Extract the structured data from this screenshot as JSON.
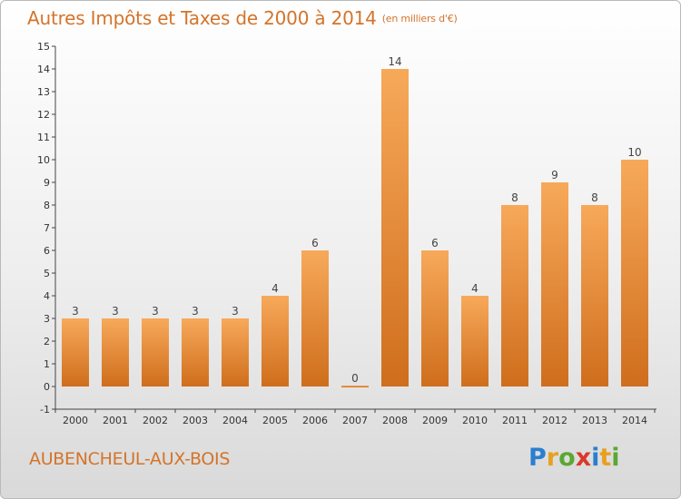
{
  "header": {
    "title": "Autres Impôts et Taxes de 2000 à 2014",
    "unit": "(en milliers d'€)"
  },
  "footer": {
    "commune": "AUBENCHEUL-AUX-BOIS",
    "logo_letters": [
      "P",
      "r",
      "o",
      "x",
      "i",
      "t",
      "i"
    ],
    "logo_colors": [
      "#2a7fcf",
      "#e8a020",
      "#5aa832",
      "#d93a2a",
      "#2a7fcf",
      "#e8a020",
      "#5aa832"
    ]
  },
  "colors": {
    "bar_top": "#f7a95a",
    "bar_bottom": "#cf6e1c",
    "text_accent": "#d4742a"
  },
  "chart_data": {
    "type": "bar",
    "title": "Autres Impôts et Taxes de 2000 à 2014",
    "subtitle": "(en milliers d'€)",
    "categories": [
      "2000",
      "2001",
      "2002",
      "2003",
      "2004",
      "2005",
      "2006",
      "2007",
      "2008",
      "2009",
      "2010",
      "2011",
      "2012",
      "2013",
      "2014"
    ],
    "values": [
      3,
      3,
      3,
      3,
      3,
      4,
      6,
      0,
      14,
      6,
      4,
      8,
      9,
      8,
      10
    ],
    "data_labels": [
      "3",
      "3",
      "3",
      "3",
      "3",
      "4",
      "6",
      "0",
      "14",
      "6",
      "4",
      "8",
      "9",
      "8",
      "10"
    ],
    "ylim": [
      -1,
      15
    ],
    "yticks": [
      -1,
      0,
      1,
      2,
      3,
      4,
      5,
      6,
      7,
      8,
      9,
      10,
      11,
      12,
      13,
      14,
      15
    ],
    "grid": false,
    "legend": "none"
  }
}
